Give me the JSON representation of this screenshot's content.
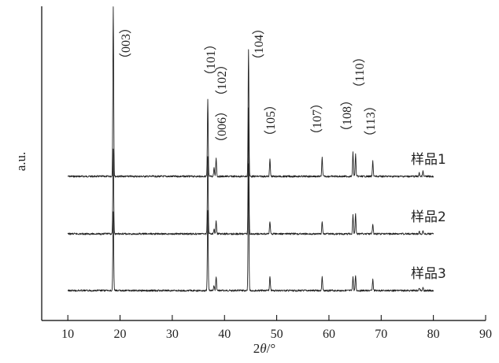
{
  "chart_data": {
    "type": "line",
    "xlabel_prefix": "2",
    "xlabel_symbol": "θ",
    "xlabel_suffix": "/°",
    "ylabel": "a.u.",
    "xlim": [
      5,
      90
    ],
    "x_ticks": [
      "10",
      "20",
      "30",
      "40",
      "50",
      "60",
      "70",
      "80",
      "90"
    ],
    "grid": false,
    "line_color": "#222222",
    "peaks": [
      {
        "label": "（003）",
        "x": 18.7
      },
      {
        "label": "（101）",
        "x": 36.8
      },
      {
        "label": "（006）",
        "x": 38.0
      },
      {
        "label": "（102）",
        "x": 38.4
      },
      {
        "label": "（104）",
        "x": 44.6
      },
      {
        "label": "（105）",
        "x": 48.7
      },
      {
        "label": "（107）",
        "x": 58.7
      },
      {
        "label": "（108）",
        "x": 64.6
      },
      {
        "label": "（110）",
        "x": 65.1
      },
      {
        "label": "（113）",
        "x": 68.4
      }
    ],
    "series": [
      {
        "name": "样品1",
        "x_range": [
          10,
          80
        ],
        "peak_intensity": [
          1.0,
          0.45,
          0.05,
          0.11,
          0.75,
          0.1,
          0.11,
          0.14,
          0.13,
          0.09,
          0.02,
          0.03
        ],
        "peak_x": [
          18.7,
          36.8,
          38.0,
          38.4,
          44.6,
          48.7,
          58.7,
          64.6,
          65.1,
          68.4,
          77.3,
          78.0
        ]
      },
      {
        "name": "样品2",
        "x_range": [
          10,
          80
        ],
        "peak_intensity": [
          0.68,
          0.62,
          0.04,
          0.1,
          1.0,
          0.1,
          0.1,
          0.15,
          0.16,
          0.08,
          0.02,
          0.03
        ],
        "peak_x": [
          18.7,
          36.8,
          38.0,
          38.4,
          44.6,
          48.7,
          58.7,
          64.6,
          65.1,
          68.4,
          77.3,
          78.0
        ]
      },
      {
        "name": "样品3",
        "x_range": [
          10,
          80
        ],
        "peak_intensity": [
          0.62,
          0.64,
          0.04,
          0.11,
          1.0,
          0.11,
          0.11,
          0.11,
          0.12,
          0.09,
          0.02,
          0.03
        ],
        "peak_x": [
          18.7,
          36.8,
          38.0,
          38.4,
          44.6,
          48.7,
          58.7,
          64.6,
          65.1,
          68.4,
          77.3,
          78.0
        ]
      }
    ]
  }
}
